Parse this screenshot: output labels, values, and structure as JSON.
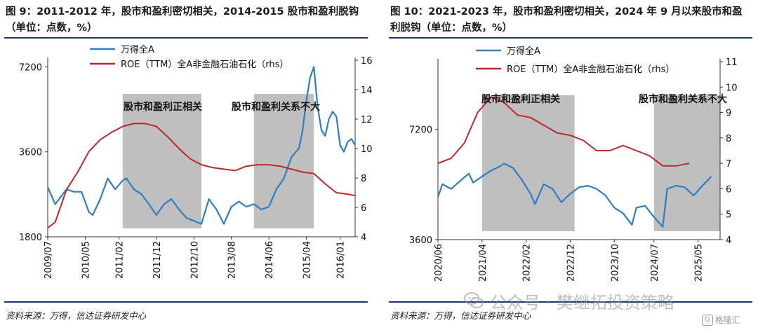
{
  "panels": [
    {
      "title": "图 9：2011-2012 年，股市和盈利密切相关，2014-2015 股市和盈利脱钩（单位：点数，%）",
      "source": "资料来源：万得，信达证券研发中心"
    },
    {
      "title": "图 10：2021-2023 年，股市和盈利密切相关，2024 年 9 月以来股市和盈利脱钩（单位：点数，%）",
      "source": "资料来源：万得，信达证券研发中心"
    }
  ],
  "watermark": {
    "text": "公众号 · 樊继拓投资策略"
  },
  "corner_logo": {
    "box": "G",
    "text": "格隆汇"
  },
  "colors": {
    "blue": "#2e7fc1",
    "red": "#c0272d",
    "shade": "#b4b4b4"
  },
  "chart_data": [
    {
      "type": "line",
      "x_ticks": [
        "2009/07",
        "2010/05",
        "2011/02",
        "2011/12",
        "2012/10",
        "2013/08",
        "2014/06",
        "2015/04",
        "2016/01"
      ],
      "y_left": {
        "ticks": [
          "1800",
          "3600",
          "7200"
        ],
        "scale": "log",
        "range": [
          1800,
          7600
        ]
      },
      "y_right": {
        "ticks": [
          "4",
          "6",
          "8",
          "10",
          "12",
          "14",
          "16"
        ],
        "range": [
          4,
          16
        ]
      },
      "legend": [
        "万得全A",
        "ROE（TTM）全A非金融石油石化（rhs）"
      ],
      "annotations": [
        "股市和盈利正相关",
        "股市和盈利关系不大"
      ],
      "shaded_regions": [
        [
          "2011/03",
          "2012/12"
        ],
        [
          "2014/02",
          "2015/06"
        ]
      ],
      "series": [
        {
          "name": "万得全A",
          "axis": "left",
          "points": [
            [
              "2009/07",
              2700
            ],
            [
              "2009/09",
              2350
            ],
            [
              "2009/12",
              2650
            ],
            [
              "2010/02",
              2600
            ],
            [
              "2010/04",
              2600
            ],
            [
              "2010/06",
              2200
            ],
            [
              "2010/07",
              2150
            ],
            [
              "2010/09",
              2450
            ],
            [
              "2010/11",
              2900
            ],
            [
              "2011/01",
              2650
            ],
            [
              "2011/03",
              2850
            ],
            [
              "2011/04",
              2900
            ],
            [
              "2011/06",
              2650
            ],
            [
              "2011/08",
              2550
            ],
            [
              "2011/10",
              2350
            ],
            [
              "2011/12",
              2150
            ],
            [
              "2012/02",
              2350
            ],
            [
              "2012/04",
              2450
            ],
            [
              "2012/06",
              2250
            ],
            [
              "2012/08",
              2100
            ],
            [
              "2012/10",
              2050
            ],
            [
              "2012/12",
              2000
            ],
            [
              "2013/02",
              2450
            ],
            [
              "2013/04",
              2250
            ],
            [
              "2013/06",
              2000
            ],
            [
              "2013/08",
              2300
            ],
            [
              "2013/10",
              2400
            ],
            [
              "2013/12",
              2300
            ],
            [
              "2014/02",
              2350
            ],
            [
              "2014/04",
              2250
            ],
            [
              "2014/06",
              2300
            ],
            [
              "2014/08",
              2650
            ],
            [
              "2014/10",
              2900
            ],
            [
              "2014/12",
              3450
            ],
            [
              "2015/02",
              3700
            ],
            [
              "2015/03",
              4300
            ],
            [
              "2015/04",
              5500
            ],
            [
              "2015/05",
              6600
            ],
            [
              "2015/06",
              7200
            ],
            [
              "2015/07",
              5200
            ],
            [
              "2015/08",
              4300
            ],
            [
              "2015/09",
              4100
            ],
            [
              "2015/10",
              4700
            ],
            [
              "2015/11",
              5000
            ],
            [
              "2015/12",
              4800
            ],
            [
              "2016/01",
              3800
            ],
            [
              "2016/02",
              3600
            ],
            [
              "2016/03",
              3900
            ],
            [
              "2016/04",
              4000
            ],
            [
              "2016/05",
              3800
            ]
          ]
        },
        {
          "name": "ROE（TTM）全A非金融石油石化（rhs）",
          "axis": "right",
          "points": [
            [
              "2009/07",
              4.6
            ],
            [
              "2009/09",
              5.0
            ],
            [
              "2009/12",
              7.2
            ],
            [
              "2010/03",
              8.4
            ],
            [
              "2010/06",
              9.8
            ],
            [
              "2010/09",
              10.6
            ],
            [
              "2010/12",
              11.1
            ],
            [
              "2011/03",
              11.5
            ],
            [
              "2011/06",
              11.7
            ],
            [
              "2011/09",
              11.7
            ],
            [
              "2011/12",
              11.5
            ],
            [
              "2012/03",
              10.8
            ],
            [
              "2012/06",
              10.0
            ],
            [
              "2012/09",
              9.3
            ],
            [
              "2012/12",
              8.9
            ],
            [
              "2013/03",
              8.7
            ],
            [
              "2013/06",
              8.6
            ],
            [
              "2013/09",
              8.5
            ],
            [
              "2013/12",
              8.8
            ],
            [
              "2014/03",
              8.9
            ],
            [
              "2014/06",
              8.9
            ],
            [
              "2014/09",
              8.8
            ],
            [
              "2014/12",
              8.6
            ],
            [
              "2015/03",
              8.4
            ],
            [
              "2015/06",
              8.3
            ],
            [
              "2015/09",
              7.6
            ],
            [
              "2015/12",
              7.0
            ],
            [
              "2016/03",
              6.9
            ],
            [
              "2016/05",
              6.8
            ]
          ]
        }
      ]
    },
    {
      "type": "line",
      "x_ticks": [
        "2020/06",
        "2021/04",
        "2022/02",
        "2022/12",
        "2023/10",
        "2024/07",
        "2025/05"
      ],
      "y_left": {
        "ticks": [
          "3600",
          "7200"
        ],
        "scale": "log",
        "range": [
          3600,
          11000
        ]
      },
      "y_right": {
        "ticks": [
          "4",
          "5",
          "6",
          "7",
          "8",
          "9",
          "10",
          "11"
        ],
        "range": [
          4,
          11
        ]
      },
      "legend": [
        "万得全A",
        "ROE（TTM）全A非金融石油石化（rhs）"
      ],
      "annotations": [
        "股市和盈利正相关",
        "股市和盈利关系不大"
      ],
      "shaded_regions": [
        [
          "2021/04",
          "2023/01"
        ],
        [
          "2024/07",
          "2025/10"
        ]
      ],
      "series": [
        {
          "name": "万得全A",
          "axis": "left",
          "points": [
            [
              "2020/06",
              4700
            ],
            [
              "2020/07",
              5100
            ],
            [
              "2020/09",
              4950
            ],
            [
              "2020/11",
              5200
            ],
            [
              "2021/01",
              5450
            ],
            [
              "2021/02",
              5150
            ],
            [
              "2021/04",
              5350
            ],
            [
              "2021/06",
              5550
            ],
            [
              "2021/08",
              5700
            ],
            [
              "2021/09",
              5800
            ],
            [
              "2021/11",
              5650
            ],
            [
              "2022/01",
              5250
            ],
            [
              "2022/03",
              4800
            ],
            [
              "2022/04",
              4500
            ],
            [
              "2022/06",
              5100
            ],
            [
              "2022/08",
              4950
            ],
            [
              "2022/10",
              4550
            ],
            [
              "2022/12",
              4800
            ],
            [
              "2023/02",
              5000
            ],
            [
              "2023/04",
              5050
            ],
            [
              "2023/06",
              4950
            ],
            [
              "2023/08",
              4750
            ],
            [
              "2023/10",
              4400
            ],
            [
              "2023/12",
              4250
            ],
            [
              "2024/02",
              3950
            ],
            [
              "2024/03",
              4400
            ],
            [
              "2024/05",
              4450
            ],
            [
              "2024/07",
              4150
            ],
            [
              "2024/09",
              3900
            ],
            [
              "2024/10",
              4950
            ],
            [
              "2024/12",
              5050
            ],
            [
              "2025/02",
              5000
            ],
            [
              "2025/04",
              4750
            ],
            [
              "2025/06",
              5050
            ],
            [
              "2025/08",
              5350
            ]
          ]
        },
        {
          "name": "ROE（TTM）全A非金融石油石化（rhs）",
          "axis": "right",
          "points": [
            [
              "2020/06",
              7.0
            ],
            [
              "2020/09",
              7.2
            ],
            [
              "2020/12",
              7.8
            ],
            [
              "2021/03",
              9.0
            ],
            [
              "2021/06",
              9.6
            ],
            [
              "2021/09",
              9.4
            ],
            [
              "2021/12",
              8.9
            ],
            [
              "2022/03",
              8.8
            ],
            [
              "2022/06",
              8.5
            ],
            [
              "2022/09",
              8.2
            ],
            [
              "2022/12",
              8.1
            ],
            [
              "2023/03",
              7.9
            ],
            [
              "2023/06",
              7.5
            ],
            [
              "2023/09",
              7.5
            ],
            [
              "2023/12",
              7.7
            ],
            [
              "2024/03",
              7.5
            ],
            [
              "2024/06",
              7.3
            ],
            [
              "2024/09",
              6.9
            ],
            [
              "2024/12",
              6.9
            ],
            [
              "2025/03",
              7.0
            ]
          ]
        }
      ]
    }
  ]
}
